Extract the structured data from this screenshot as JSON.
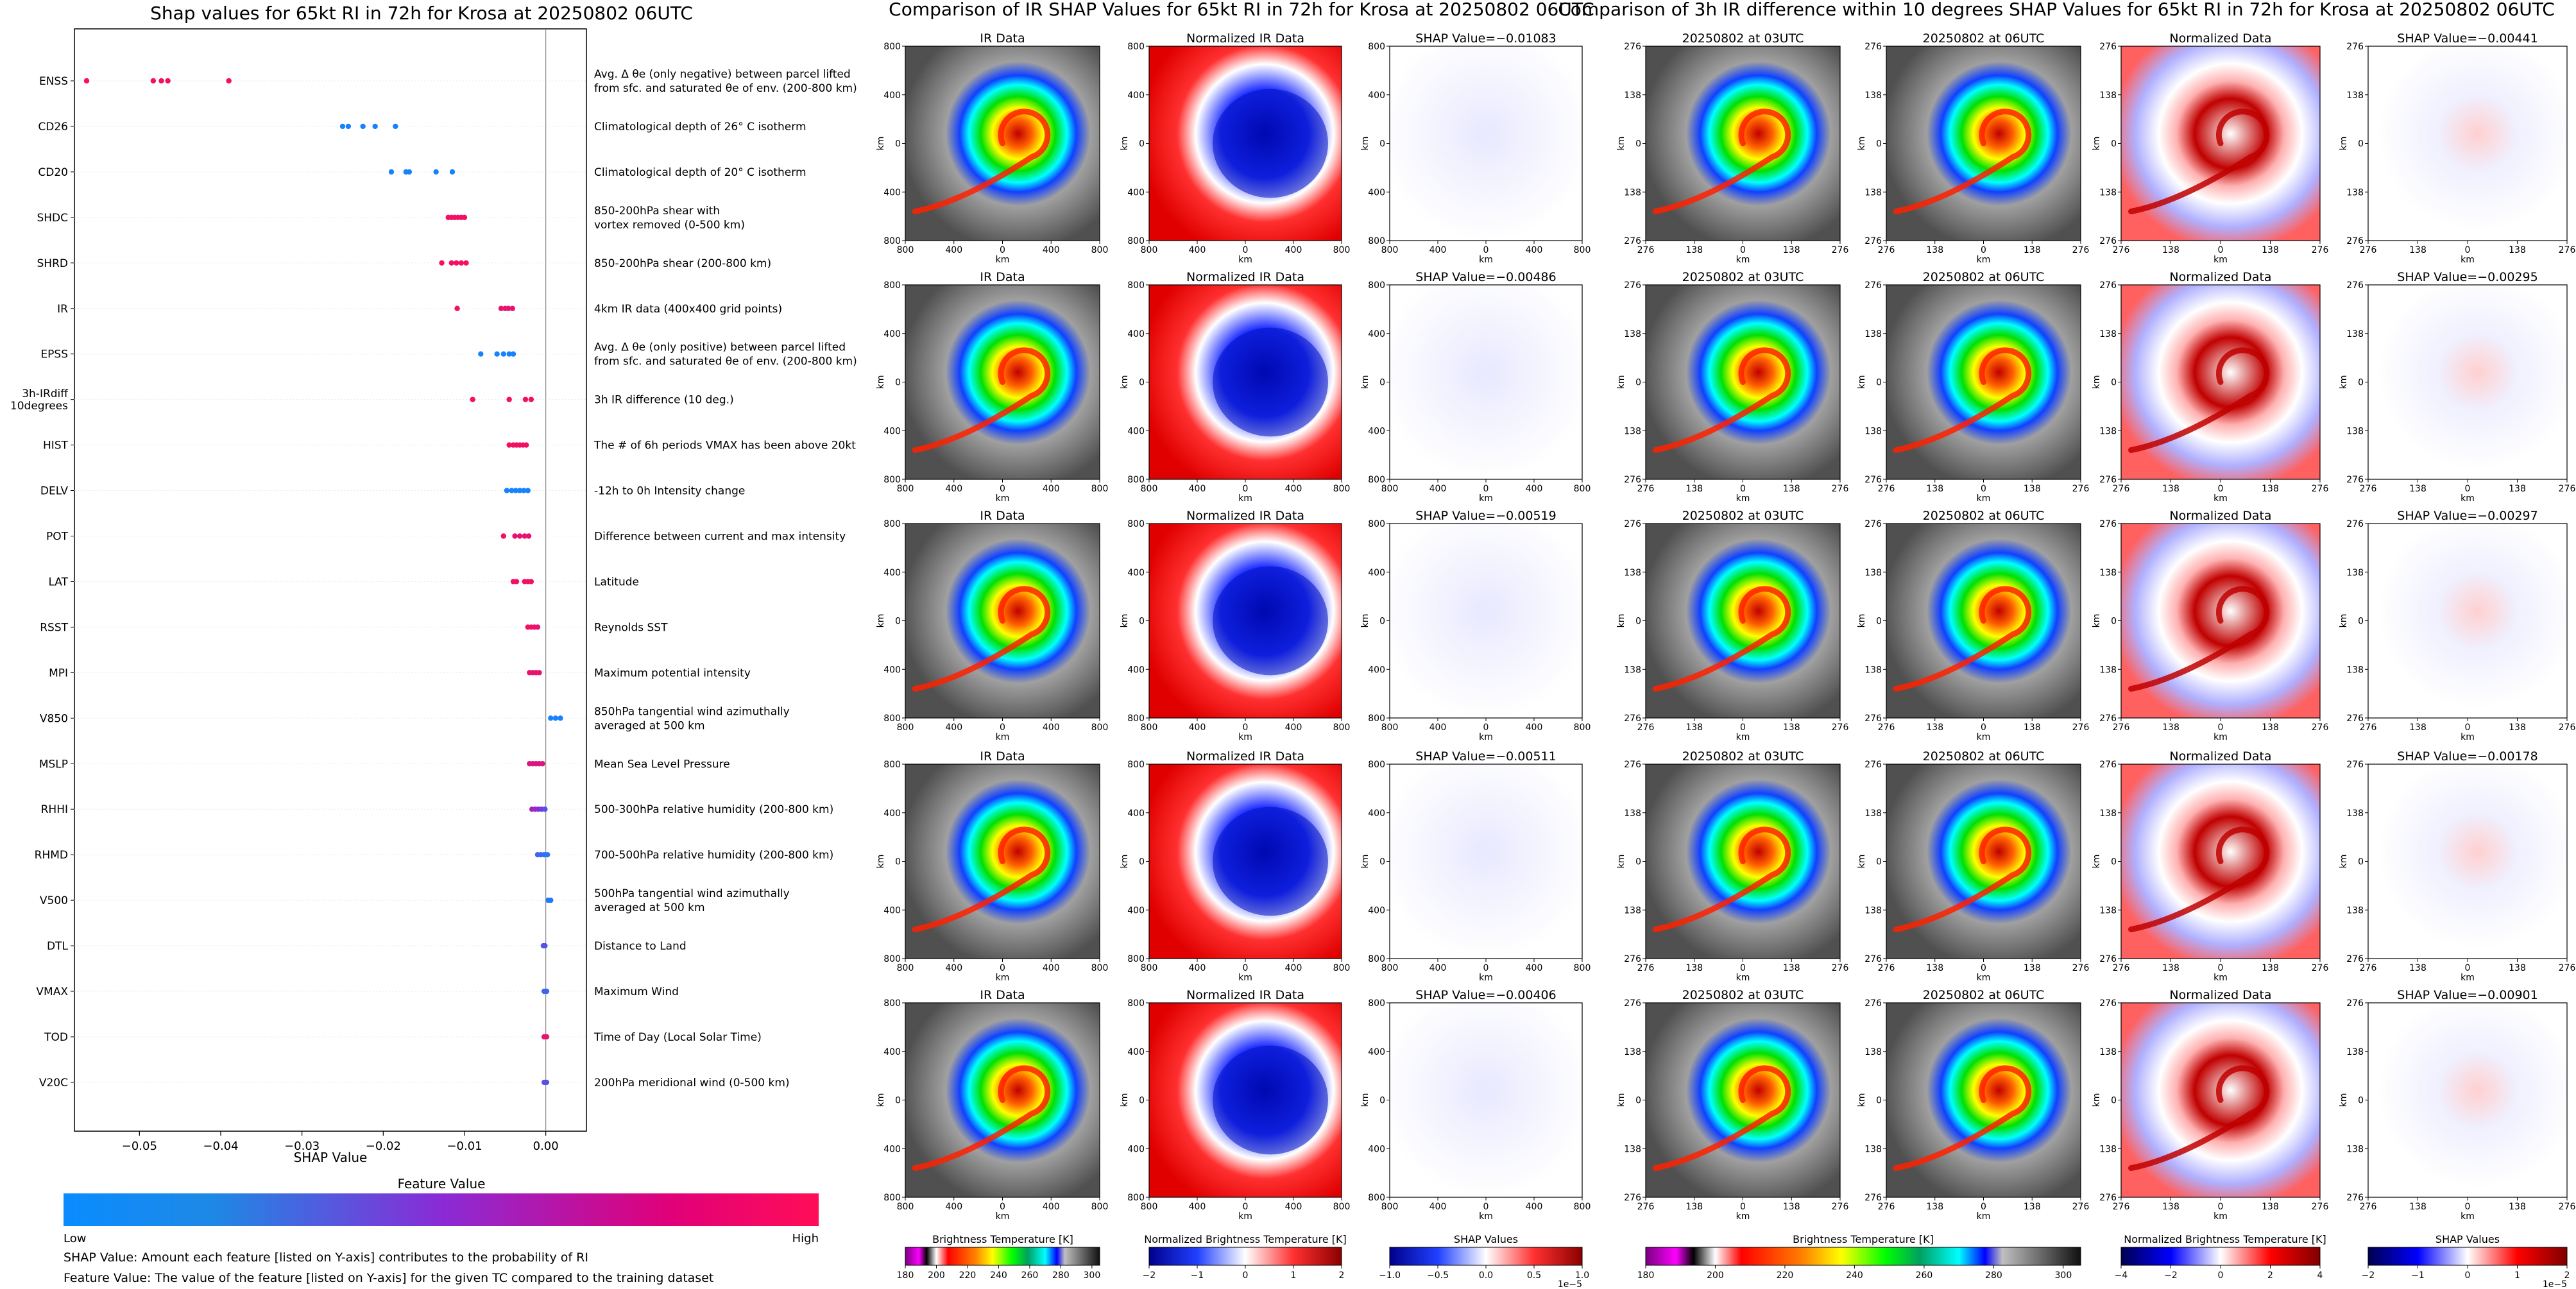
{
  "figure": {
    "shap_title": "Shap values for 65kt RI in 72h for Krosa at 20250802 06UTC",
    "ir_title": "Comparison of IR SHAP Values for 65kt RI in 72h for Krosa at 20250802 06UTC",
    "diff_title": "Comparison of 3h IR difference within 10 degrees SHAP Values for 65kt RI in 72h for Krosa at 20250802 06UTC",
    "shap_xlabel": "SHAP Value",
    "shap_xticks": [
      "−0.05",
      "−0.04",
      "−0.03",
      "−0.02",
      "−0.01",
      "0.00"
    ],
    "feature_value_label": "Feature Value",
    "low_label": "Low",
    "high_label": "High",
    "note1": "SHAP Value: Amount each feature [listed on Y-axis] contributes to the probability of RI",
    "note2": "Feature Value: The value of the feature [listed on Y-axis] for the given TC compared to the training dataset",
    "panel_titles": {
      "ir": "IR Data",
      "norm_ir": "Normalized IR Data",
      "t03": "20250802 at 03UTC",
      "t06": "20250802 at 06UTC",
      "norm": "Normalized Data"
    },
    "shap_value_prefix": "SHAP Value=",
    "axis_unit": "km",
    "ir_ticks": [
      "800",
      "400",
      "0",
      "400",
      "800"
    ],
    "diff_ticks": [
      "276",
      "138",
      "0",
      "138",
      "276"
    ],
    "colorbars": {
      "bt_label": "Brightness Temperature [K]",
      "bt_ticks": [
        "180",
        "200",
        "220",
        "240",
        "260",
        "280",
        "300"
      ],
      "bt2_ticks": [
        "180",
        "200",
        "220",
        "240",
        "260",
        "280",
        "300"
      ],
      "nbt_label": "Normalized Brightness Temperature [K]",
      "nbt_ticks": [
        "−2",
        "−1",
        "0",
        "1",
        "2"
      ],
      "nbt2_ticks": [
        "−4",
        "−2",
        "0",
        "2",
        "4"
      ],
      "shap_label": "SHAP Values",
      "shap_ticks": [
        "−1.0",
        "−0.5",
        "0.0",
        "0.5",
        "1.0"
      ],
      "shap_exp": "1e−5",
      "shap2_ticks": [
        "−2",
        "−1",
        "0",
        "1",
        "2"
      ],
      "shap2_exp": "1e−5"
    },
    "colors": {
      "low": "#1E88E5",
      "high": "#FF0D57",
      "bg": "#ffffff"
    }
  },
  "chart_data": [
    {
      "type": "scatter",
      "title": "Shap values for 65kt RI in 72h for Krosa at 20250802 06UTC",
      "xlabel": "SHAP Value",
      "xlim": [
        -0.058,
        0.005
      ],
      "features": [
        {
          "name": "ENSS",
          "desc": "Avg. Δ θe (only negative) between parcel lifted|from sfc. and saturated θe of env. (200-800 km)",
          "points": [
            {
              "x": -0.0565,
              "c": 1.0
            },
            {
              "x": -0.0483,
              "c": 0.95
            },
            {
              "x": -0.0473,
              "c": 0.95
            },
            {
              "x": -0.0465,
              "c": 0.95
            },
            {
              "x": -0.039,
              "c": 0.95
            }
          ]
        },
        {
          "name": "CD26",
          "desc": "Climatological depth of 26° C isotherm",
          "points": [
            {
              "x": -0.025,
              "c": 0.05
            },
            {
              "x": -0.0243,
              "c": 0.05
            },
            {
              "x": -0.0225,
              "c": 0.05
            },
            {
              "x": -0.021,
              "c": 0.05
            },
            {
              "x": -0.0185,
              "c": 0.05
            }
          ]
        },
        {
          "name": "CD20",
          "desc": "Climatological depth of 20° C isotherm",
          "points": [
            {
              "x": -0.019,
              "c": 0.05
            },
            {
              "x": -0.0172,
              "c": 0.05
            },
            {
              "x": -0.0168,
              "c": 0.05
            },
            {
              "x": -0.0135,
              "c": 0.05
            },
            {
              "x": -0.0115,
              "c": 0.05
            }
          ]
        },
        {
          "name": "SHDC",
          "desc": "850-200hPa shear with|vortex removed (0-500 km)",
          "points": [
            {
              "x": -0.012,
              "c": 0.95
            },
            {
              "x": -0.0116,
              "c": 0.95
            },
            {
              "x": -0.0112,
              "c": 0.95
            },
            {
              "x": -0.0108,
              "c": 0.95
            },
            {
              "x": -0.0104,
              "c": 0.95
            },
            {
              "x": -0.01,
              "c": 0.95
            }
          ]
        },
        {
          "name": "SHRD",
          "desc": "850-200hPa shear (200-800 km)",
          "points": [
            {
              "x": -0.0128,
              "c": 0.95
            },
            {
              "x": -0.0116,
              "c": 0.95
            },
            {
              "x": -0.011,
              "c": 0.95
            },
            {
              "x": -0.0104,
              "c": 0.95
            },
            {
              "x": -0.0098,
              "c": 0.95
            }
          ]
        },
        {
          "name": "IR",
          "desc": "4km IR data (400x400 grid points)",
          "points": [
            {
              "x": -0.0109,
              "c": 0.95
            },
            {
              "x": -0.0055,
              "c": 0.9
            },
            {
              "x": -0.005,
              "c": 0.9
            },
            {
              "x": -0.0046,
              "c": 0.9
            },
            {
              "x": -0.0041,
              "c": 0.9
            }
          ]
        },
        {
          "name": "EPSS",
          "desc": "Avg. Δ θe (only positive) between parcel lifted|from sfc. and saturated θe of env. (200-800 km)",
          "points": [
            {
              "x": -0.008,
              "c": 0.05
            },
            {
              "x": -0.006,
              "c": 0.05
            },
            {
              "x": -0.0052,
              "c": 0.05
            },
            {
              "x": -0.0045,
              "c": 0.05
            },
            {
              "x": -0.004,
              "c": 0.05
            }
          ]
        },
        {
          "name": "3h-IRdiff|10degrees",
          "desc": "3h IR difference (10 deg.)",
          "points": [
            {
              "x": -0.009,
              "c": 0.95
            },
            {
              "x": -0.0045,
              "c": 0.95
            },
            {
              "x": -0.0025,
              "c": 0.95
            },
            {
              "x": -0.0018,
              "c": 0.95
            }
          ]
        },
        {
          "name": "HIST",
          "desc": "The # of 6h periods VMAX has been above 20kt",
          "points": [
            {
              "x": -0.0045,
              "c": 0.95
            },
            {
              "x": -0.004,
              "c": 0.95
            },
            {
              "x": -0.0036,
              "c": 0.95
            },
            {
              "x": -0.0032,
              "c": 0.95
            },
            {
              "x": -0.0028,
              "c": 0.95
            },
            {
              "x": -0.0024,
              "c": 0.95
            }
          ]
        },
        {
          "name": "DELV",
          "desc": "-12h to 0h Intensity change",
          "points": [
            {
              "x": -0.0048,
              "c": 0.05
            },
            {
              "x": -0.0042,
              "c": 0.05
            },
            {
              "x": -0.0037,
              "c": 0.05
            },
            {
              "x": -0.0032,
              "c": 0.05
            },
            {
              "x": -0.0027,
              "c": 0.05
            },
            {
              "x": -0.0022,
              "c": 0.05
            }
          ]
        },
        {
          "name": "POT",
          "desc": "Difference between current and max intensity",
          "points": [
            {
              "x": -0.0052,
              "c": 0.95
            },
            {
              "x": -0.0038,
              "c": 0.9
            },
            {
              "x": -0.0032,
              "c": 0.9
            },
            {
              "x": -0.0026,
              "c": 0.9
            },
            {
              "x": -0.0021,
              "c": 0.9
            }
          ]
        },
        {
          "name": "LAT",
          "desc": "Latitude",
          "points": [
            {
              "x": -0.004,
              "c": 0.95
            },
            {
              "x": -0.0036,
              "c": 0.95
            },
            {
              "x": -0.0026,
              "c": 0.95
            },
            {
              "x": -0.0022,
              "c": 0.95
            },
            {
              "x": -0.0018,
              "c": 0.95
            }
          ]
        },
        {
          "name": "RSST",
          "desc": "Reynolds SST",
          "points": [
            {
              "x": -0.0022,
              "c": 0.95
            },
            {
              "x": -0.0018,
              "c": 0.95
            },
            {
              "x": -0.0014,
              "c": 0.95
            },
            {
              "x": -0.001,
              "c": 0.9
            }
          ]
        },
        {
          "name": "MPI",
          "desc": "Maximum potential intensity",
          "points": [
            {
              "x": -0.002,
              "c": 0.9
            },
            {
              "x": -0.0016,
              "c": 0.9
            },
            {
              "x": -0.0012,
              "c": 0.9
            },
            {
              "x": -0.0008,
              "c": 0.9
            }
          ]
        },
        {
          "name": "V850",
          "desc": "850hPa tangential wind azimuthally|averaged at 500 km",
          "points": [
            {
              "x": 0.0006,
              "c": 0.05
            },
            {
              "x": 0.0012,
              "c": 0.05
            },
            {
              "x": 0.0018,
              "c": 0.05
            }
          ]
        },
        {
          "name": "MSLP",
          "desc": "Mean Sea Level Pressure",
          "points": [
            {
              "x": -0.002,
              "c": 0.85
            },
            {
              "x": -0.0016,
              "c": 0.85
            },
            {
              "x": -0.0012,
              "c": 0.85
            },
            {
              "x": -0.0008,
              "c": 0.85
            },
            {
              "x": -0.0004,
              "c": 0.85
            }
          ]
        },
        {
          "name": "RHHI",
          "desc": "500-300hPa relative humidity (200-800 km)",
          "points": [
            {
              "x": -0.0017,
              "c": 0.6
            },
            {
              "x": -0.0013,
              "c": 0.6
            },
            {
              "x": -0.0009,
              "c": 0.5
            },
            {
              "x": -0.0005,
              "c": 0.4
            },
            {
              "x": -0.0001,
              "c": 0.3
            }
          ]
        },
        {
          "name": "RHMD",
          "desc": "700-500hPa relative humidity (200-800 km)",
          "points": [
            {
              "x": -0.001,
              "c": 0.2
            },
            {
              "x": -0.0006,
              "c": 0.2
            },
            {
              "x": -0.0002,
              "c": 0.15
            },
            {
              "x": 0.0002,
              "c": 0.1
            }
          ]
        },
        {
          "name": "V500",
          "desc": "500hPa tangential wind azimuthally|averaged at 500 km",
          "points": [
            {
              "x": 0.0003,
              "c": 0.1
            },
            {
              "x": 0.0006,
              "c": 0.1
            }
          ]
        },
        {
          "name": "DTL",
          "desc": "Distance to Land",
          "points": [
            {
              "x": -0.0003,
              "c": 0.3
            },
            {
              "x": -0.0001,
              "c": 0.3
            }
          ]
        },
        {
          "name": "VMAX",
          "desc": "Maximum Wind",
          "points": [
            {
              "x": -0.0002,
              "c": 0.2
            },
            {
              "x": 0.0001,
              "c": 0.2
            }
          ]
        },
        {
          "name": "TOD",
          "desc": "Time of Day (Local Solar Time)",
          "points": [
            {
              "x": -0.0002,
              "c": 0.9
            },
            {
              "x": 0.0001,
              "c": 0.9
            }
          ]
        },
        {
          "name": "V20C",
          "desc": "200hPa meridional wind (0-500 km)",
          "points": [
            {
              "x": -0.0002,
              "c": 0.3
            },
            {
              "x": 0.0001,
              "c": 0.3
            }
          ]
        }
      ]
    },
    {
      "type": "heatmap",
      "title": "Comparison of IR SHAP Values for 65kt RI in 72h for Krosa at 20250802 06UTC",
      "shap_values": [
        "−0.01083",
        "−0.00486",
        "−0.00519",
        "−0.00511",
        "−0.00406"
      ]
    },
    {
      "type": "heatmap",
      "title": "Comparison of 3h IR difference within 10 degrees SHAP Values for 65kt RI in 72h for Krosa at 20250802 06UTC",
      "shap_values": [
        "−0.00441",
        "−0.00295",
        "−0.00297",
        "−0.00178",
        "−0.00901"
      ]
    }
  ]
}
